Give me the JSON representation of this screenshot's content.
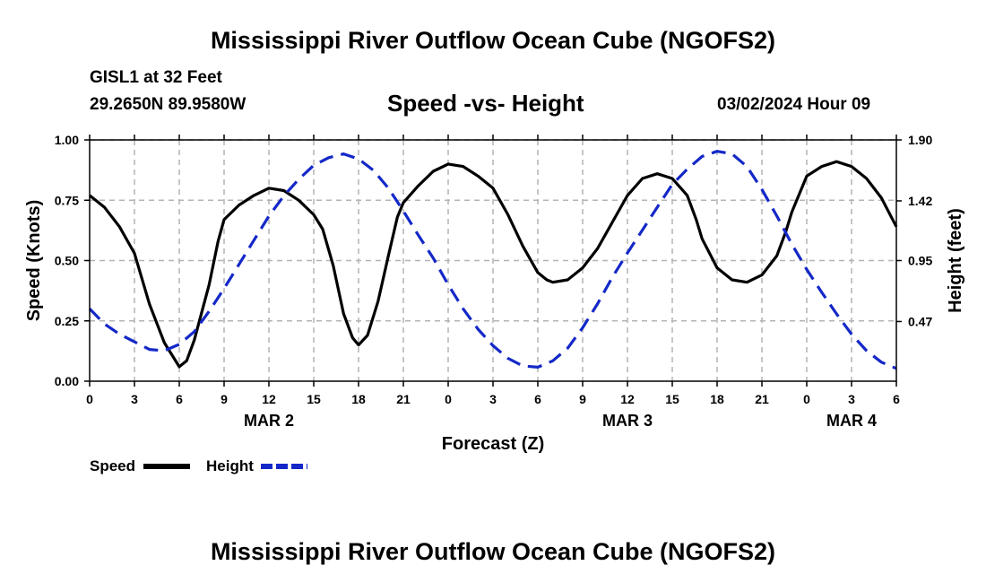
{
  "header": {
    "title": "Mississippi River Outflow Ocean Cube (NGOFS2)",
    "station": "GISL1 at 32 Feet",
    "coordinates": "29.2650N  89.9580W",
    "subtitle": "Speed -vs- Height",
    "datetime": "03/02/2024 Hour 09",
    "footer_title": "Mississippi River Outflow Ocean Cube (NGOFS2)"
  },
  "chart_data": {
    "type": "line",
    "title": "Speed -vs- Height",
    "xlabel": "Forecast (Z)",
    "ylabel": "Speed (Knots)",
    "y2label": "Height (feet)",
    "xlim": [
      0,
      54
    ],
    "ylim": [
      0,
      1
    ],
    "y2lim": [
      0,
      1.9
    ],
    "x_ticks": [
      0,
      3,
      6,
      9,
      12,
      15,
      18,
      21,
      24,
      27,
      30,
      33,
      36,
      39,
      42,
      45,
      48,
      51,
      54
    ],
    "x_tick_labels": [
      "0",
      "3",
      "6",
      "9",
      "12",
      "15",
      "18",
      "21",
      "0",
      "3",
      "6",
      "9",
      "12",
      "15",
      "18",
      "21",
      "0",
      "3",
      "6"
    ],
    "date_labels": [
      {
        "x": 12,
        "label": "MAR 2"
      },
      {
        "x": 36,
        "label": "MAR 3"
      },
      {
        "x": 51,
        "label": "MAR 4"
      }
    ],
    "y_ticks": [
      0,
      0.25,
      0.5,
      0.75,
      1.0
    ],
    "y_tick_labels": [
      "0.00",
      "0.25",
      "0.50",
      "0.75",
      "1.00"
    ],
    "y2_ticks": [
      0.47,
      0.95,
      1.42,
      1.9
    ],
    "y2_tick_labels": [
      "0.47",
      "0.95",
      "1.42",
      "1.90"
    ],
    "grid": true,
    "legend_position": "bottom-left",
    "series": [
      {
        "name": "Speed",
        "axis": "left",
        "color": "#000000",
        "style": "solid",
        "points": [
          [
            0,
            0.77
          ],
          [
            1,
            0.72
          ],
          [
            2,
            0.64
          ],
          [
            3,
            0.53
          ],
          [
            4,
            0.32
          ],
          [
            5,
            0.16
          ],
          [
            6,
            0.06
          ],
          [
            6.5,
            0.085
          ],
          [
            7,
            0.17
          ],
          [
            8,
            0.4
          ],
          [
            8.6,
            0.58
          ],
          [
            9,
            0.67
          ],
          [
            10,
            0.73
          ],
          [
            11,
            0.77
          ],
          [
            12,
            0.8
          ],
          [
            13,
            0.79
          ],
          [
            14,
            0.75
          ],
          [
            15,
            0.69
          ],
          [
            15.6,
            0.63
          ],
          [
            16.3,
            0.48
          ],
          [
            17,
            0.28
          ],
          [
            17.6,
            0.18
          ],
          [
            18,
            0.15
          ],
          [
            18.6,
            0.19
          ],
          [
            19.3,
            0.33
          ],
          [
            20,
            0.52
          ],
          [
            20.6,
            0.68
          ],
          [
            21,
            0.74
          ],
          [
            22,
            0.81
          ],
          [
            23,
            0.87
          ],
          [
            24,
            0.9
          ],
          [
            25,
            0.89
          ],
          [
            26,
            0.85
          ],
          [
            27,
            0.8
          ],
          [
            28,
            0.69
          ],
          [
            29,
            0.56
          ],
          [
            30,
            0.45
          ],
          [
            30.6,
            0.42
          ],
          [
            31,
            0.41
          ],
          [
            32,
            0.42
          ],
          [
            33,
            0.47
          ],
          [
            34,
            0.55
          ],
          [
            35,
            0.66
          ],
          [
            36,
            0.77
          ],
          [
            37,
            0.84
          ],
          [
            38,
            0.86
          ],
          [
            39,
            0.84
          ],
          [
            40,
            0.77
          ],
          [
            40.6,
            0.67
          ],
          [
            41,
            0.59
          ],
          [
            42,
            0.47
          ],
          [
            43,
            0.42
          ],
          [
            44,
            0.41
          ],
          [
            45,
            0.44
          ],
          [
            46,
            0.52
          ],
          [
            46.6,
            0.62
          ],
          [
            47,
            0.7
          ],
          [
            48,
            0.85
          ],
          [
            49,
            0.89
          ],
          [
            50,
            0.91
          ],
          [
            51,
            0.89
          ],
          [
            52,
            0.84
          ],
          [
            53,
            0.76
          ],
          [
            54,
            0.64
          ]
        ]
      },
      {
        "name": "Height",
        "axis": "right",
        "color": "#1428c8",
        "style": "dashed",
        "points": [
          [
            0,
            0.57
          ],
          [
            1,
            0.45
          ],
          [
            2,
            0.37
          ],
          [
            3,
            0.31
          ],
          [
            4,
            0.25
          ],
          [
            5,
            0.24
          ],
          [
            6,
            0.29
          ],
          [
            7,
            0.39
          ],
          [
            8,
            0.55
          ],
          [
            9,
            0.73
          ],
          [
            10,
            0.92
          ],
          [
            11,
            1.11
          ],
          [
            12,
            1.3
          ],
          [
            13,
            1.46
          ],
          [
            14,
            1.59
          ],
          [
            15,
            1.7
          ],
          [
            16,
            1.76
          ],
          [
            17,
            1.79
          ],
          [
            18,
            1.75
          ],
          [
            19,
            1.66
          ],
          [
            20,
            1.52
          ],
          [
            21,
            1.34
          ],
          [
            22,
            1.15
          ],
          [
            23,
            0.97
          ],
          [
            24,
            0.76
          ],
          [
            25,
            0.57
          ],
          [
            26,
            0.41
          ],
          [
            27,
            0.28
          ],
          [
            28,
            0.18
          ],
          [
            29,
            0.12
          ],
          [
            30,
            0.11
          ],
          [
            31,
            0.16
          ],
          [
            32,
            0.26
          ],
          [
            33,
            0.42
          ],
          [
            34,
            0.61
          ],
          [
            35,
            0.82
          ],
          [
            36,
            1.01
          ],
          [
            37,
            1.19
          ],
          [
            38,
            1.37
          ],
          [
            39,
            1.55
          ],
          [
            40,
            1.67
          ],
          [
            41,
            1.77
          ],
          [
            42,
            1.81
          ],
          [
            43,
            1.79
          ],
          [
            44,
            1.69
          ],
          [
            45,
            1.51
          ],
          [
            46,
            1.3
          ],
          [
            47,
            1.08
          ],
          [
            48,
            0.88
          ],
          [
            49,
            0.7
          ],
          [
            50,
            0.53
          ],
          [
            51,
            0.37
          ],
          [
            52,
            0.24
          ],
          [
            53,
            0.15
          ],
          [
            54,
            0.1
          ]
        ]
      }
    ]
  },
  "legend": [
    {
      "label": "Speed",
      "color": "#000000",
      "style": "solid"
    },
    {
      "label": "Height",
      "color": "#1428c8",
      "style": "dashed"
    }
  ]
}
